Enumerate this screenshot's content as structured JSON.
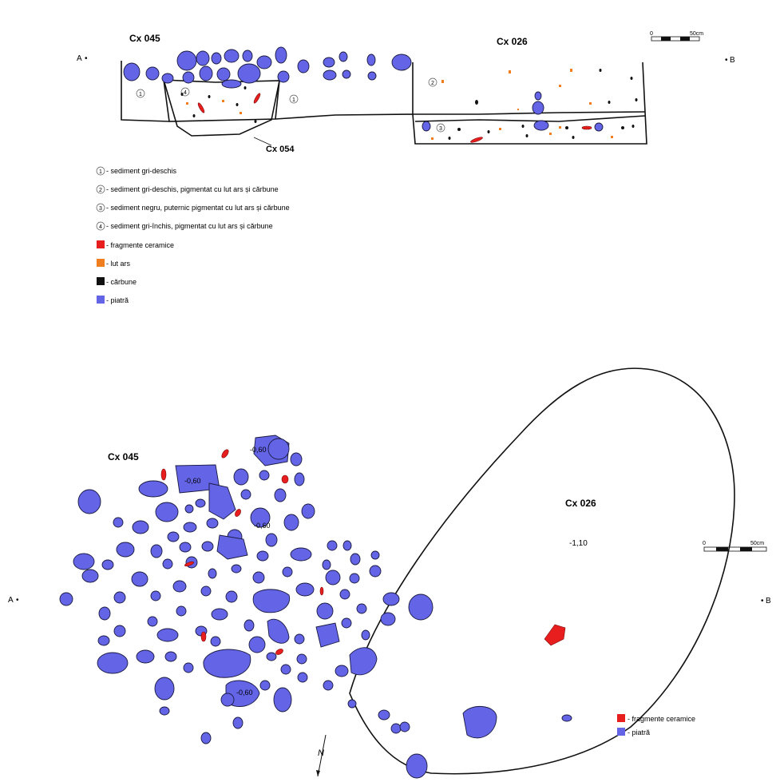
{
  "section": {
    "marker_left": "A",
    "marker_right": "B",
    "title_cx045": "Cx 045",
    "title_cx026": "Cx 026",
    "title_cx054": "Cx 054",
    "layer_numbers": [
      "1",
      "4",
      "1",
      "2",
      "3"
    ],
    "scale_zero": "0",
    "scale_end": "50cm"
  },
  "legend": [
    {
      "num": "1",
      "text": "- sediment gri-deschis"
    },
    {
      "num": "2",
      "text": "- sediment gri-deschis, pigmentat cu lut ars și cărbune"
    },
    {
      "num": "3",
      "text": "- sediment negru, puternic pigmentat cu lut ars și cărbune"
    },
    {
      "num": "4",
      "text": "- sediment gri-închis, pigmentat cu lut ars și cărbune"
    },
    {
      "swatch": "#e81e1e",
      "text": "- fragmente ceramice"
    },
    {
      "swatch": "#f07d1e",
      "text": "- lut ars"
    },
    {
      "swatch": "#111111",
      "text": "- cărbune"
    },
    {
      "swatch": "#6464e6",
      "text": "- piatră"
    }
  ],
  "plan": {
    "marker_left": "A",
    "marker_right": "B",
    "title_cx045": "Cx 045",
    "title_cx026": "Cx 026",
    "depth_cx026": "-1,10",
    "depths": [
      "-0,60",
      "-0,60",
      "-0,60",
      "-0,60"
    ],
    "scale_zero": "0",
    "scale_end": "50cm",
    "north": "N",
    "legend": [
      {
        "swatch": "#e81e1e",
        "text": "- fragmente ceramice"
      },
      {
        "swatch": "#6464e6",
        "text": "- piatră"
      }
    ]
  },
  "colors": {
    "stone": "#6464e6",
    "ceramic": "#e81e1e",
    "burnt_clay": "#f07d1e",
    "charcoal": "#111111"
  }
}
